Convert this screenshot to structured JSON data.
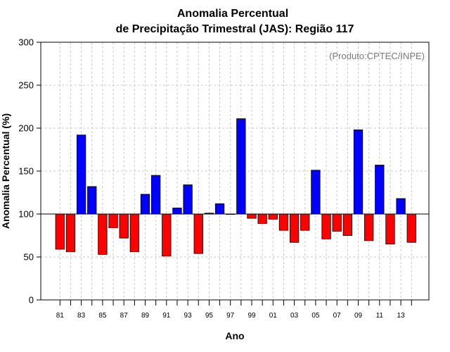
{
  "chart_data": {
    "type": "bar",
    "title_line1": "Anomalia Percentual",
    "title_line2": "de Precipitação Trimestral (JAS): Região 117",
    "xlabel": "Ano",
    "ylabel": "Anomalia Percentual (%)",
    "annotation": "(Produto:CPTEC/INPE)",
    "ylim": [
      0,
      300
    ],
    "yticks": [
      0,
      50,
      100,
      150,
      200,
      250,
      300
    ],
    "baseline": 100,
    "grid": true,
    "colors": {
      "above": "#0000ff",
      "below": "#ff0000",
      "grid": "#c8c8c8"
    },
    "categories": [
      "81",
      "82",
      "83",
      "84",
      "85",
      "86",
      "87",
      "88",
      "89",
      "90",
      "91",
      "92",
      "93",
      "94",
      "95",
      "96",
      "97",
      "98",
      "99",
      "00",
      "01",
      "02",
      "03",
      "04",
      "05",
      "06",
      "07",
      "08",
      "09",
      "10",
      "11",
      "12",
      "13",
      "14"
    ],
    "tick_labels": [
      "81",
      "83",
      "85",
      "87",
      "89",
      "91",
      "93",
      "95",
      "97",
      "99",
      "01",
      "03",
      "05",
      "07",
      "09",
      "11",
      "13"
    ],
    "values": [
      59,
      56,
      192,
      132,
      53,
      84,
      72,
      56,
      123,
      145,
      51,
      107,
      134,
      54,
      101,
      112,
      100,
      211,
      95,
      89,
      94,
      81,
      67,
      81,
      151,
      71,
      80,
      75,
      198,
      69,
      157,
      65,
      118,
      67
    ]
  }
}
